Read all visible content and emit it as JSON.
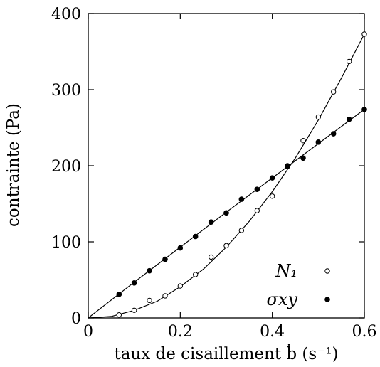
{
  "chart_data": {
    "type": "scatter",
    "xlabel": "taux de cisaillement ḃ (s⁻¹)",
    "ylabel": "contrainte (Pa)",
    "xlim": [
      0,
      0.6
    ],
    "ylim": [
      0,
      400
    ],
    "x_ticks": [
      "0",
      "0.2",
      "0.4",
      "0.6"
    ],
    "y_ticks": [
      "0",
      "100",
      "200",
      "300",
      "400"
    ],
    "grid": false,
    "legend_position": "bottom-right",
    "series": [
      {
        "name": "N₁",
        "marker": "open-circle",
        "x": [
          0.067,
          0.1,
          0.133,
          0.167,
          0.2,
          0.233,
          0.267,
          0.3,
          0.333,
          0.367,
          0.4,
          0.433,
          0.467,
          0.5,
          0.533,
          0.567,
          0.6
        ],
        "y": [
          4,
          10,
          23,
          29,
          42,
          57,
          80,
          95,
          115,
          141,
          160,
          200,
          233,
          264,
          297,
          337,
          373
        ],
        "fit_curve": {
          "x": [
            0,
            0.05,
            0.1,
            0.15,
            0.2,
            0.25,
            0.3,
            0.35,
            0.4,
            0.45,
            0.5,
            0.55,
            0.6
          ],
          "y": [
            0,
            2,
            10,
            22,
            41,
            64,
            93,
            127,
            166,
            210,
            260,
            315,
            373
          ]
        }
      },
      {
        "name": "σxy",
        "marker": "filled-circle",
        "x": [
          0.067,
          0.1,
          0.133,
          0.167,
          0.2,
          0.233,
          0.267,
          0.3,
          0.333,
          0.367,
          0.4,
          0.433,
          0.467,
          0.5,
          0.533,
          0.567,
          0.6
        ],
        "y": [
          31,
          46,
          62,
          77,
          92,
          107,
          126,
          138,
          156,
          169,
          184,
          199,
          210,
          231,
          242,
          261,
          274
        ],
        "fit_curve": {
          "x": [
            0,
            0.1,
            0.2,
            0.3,
            0.4,
            0.5,
            0.6
          ],
          "y": [
            0,
            47,
            93,
            139,
            184,
            229,
            274
          ]
        }
      }
    ]
  }
}
